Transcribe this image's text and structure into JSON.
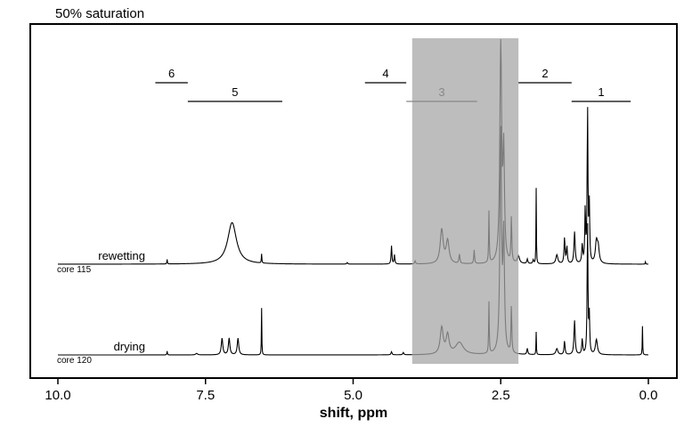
{
  "title": "50% saturation",
  "chart_data": {
    "type": "line",
    "xlabel": "shift, ppm",
    "xlim": [
      10.0,
      0.0
    ],
    "x_reversed": true,
    "xticks": [
      "10.0",
      "7.5",
      "5.0",
      "2.5",
      "0.0"
    ],
    "xtick_values": [
      10.0,
      7.5,
      5.0,
      2.5,
      0.0
    ],
    "highlight_band": {
      "x_from": 4.0,
      "x_to": 2.2,
      "color": "#bdbdbd"
    },
    "regions": [
      {
        "label": "6",
        "from": 8.35,
        "to": 7.8,
        "level": "upper",
        "color": "#000000"
      },
      {
        "label": "5",
        "from": 7.8,
        "to": 6.2,
        "level": "lower",
        "color": "#000000"
      },
      {
        "label": "4",
        "from": 4.8,
        "to": 4.1,
        "level": "upper",
        "color": "#000000"
      },
      {
        "label": "3",
        "from": 4.1,
        "to": 2.9,
        "level": "lower",
        "color": "#888888"
      },
      {
        "label": "2",
        "from": 2.2,
        "to": 1.3,
        "level": "upper",
        "color": "#000000"
      },
      {
        "label": "1",
        "from": 1.3,
        "to": 0.3,
        "level": "lower",
        "color": "#000000"
      }
    ],
    "series": [
      {
        "name": "rewetting",
        "sample": "core 115",
        "color": "#000000",
        "peaks": [
          [
            8.15,
            0.06,
            0.005
          ],
          [
            7.05,
            0.55,
            0.09
          ],
          [
            6.55,
            0.12,
            0.005
          ],
          [
            5.1,
            0.02,
            0.01
          ],
          [
            4.35,
            0.24,
            0.008
          ],
          [
            4.3,
            0.12,
            0.008
          ],
          [
            3.95,
            0.04,
            0.01
          ],
          [
            3.5,
            0.45,
            0.03
          ],
          [
            3.4,
            0.3,
            0.03
          ],
          [
            3.2,
            0.12,
            0.01
          ],
          [
            2.95,
            0.18,
            0.008
          ],
          [
            2.7,
            0.68,
            0.006
          ],
          [
            2.5,
            2.9,
            0.018
          ],
          [
            2.45,
            1.4,
            0.015
          ],
          [
            2.32,
            0.6,
            0.008
          ],
          [
            2.2,
            0.1,
            0.02
          ],
          [
            2.05,
            0.06,
            0.01
          ],
          [
            1.95,
            0.05,
            0.01
          ],
          [
            1.9,
            1.0,
            0.004
          ],
          [
            1.55,
            0.12,
            0.02
          ],
          [
            1.42,
            0.34,
            0.01
          ],
          [
            1.38,
            0.22,
            0.01
          ],
          [
            1.25,
            0.42,
            0.012
          ],
          [
            1.12,
            0.24,
            0.01
          ],
          [
            1.07,
            0.7,
            0.008
          ],
          [
            1.03,
            2.05,
            0.008
          ],
          [
            1.0,
            0.75,
            0.008
          ],
          [
            0.88,
            0.28,
            0.02
          ],
          [
            0.85,
            0.2,
            0.02
          ],
          [
            0.05,
            0.03,
            0.005
          ]
        ]
      },
      {
        "name": "drying",
        "sample": "core 120",
        "color": "#000000",
        "peaks": [
          [
            8.15,
            0.05,
            0.005
          ],
          [
            7.65,
            0.02,
            0.02
          ],
          [
            7.22,
            0.22,
            0.015
          ],
          [
            7.1,
            0.22,
            0.015
          ],
          [
            6.95,
            0.22,
            0.015
          ],
          [
            6.55,
            0.62,
            0.004
          ],
          [
            4.35,
            0.04,
            0.01
          ],
          [
            4.15,
            0.03,
            0.01
          ],
          [
            3.5,
            0.35,
            0.03
          ],
          [
            3.4,
            0.25,
            0.03
          ],
          [
            3.2,
            0.16,
            0.08
          ],
          [
            2.7,
            0.68,
            0.006
          ],
          [
            2.5,
            2.9,
            0.016
          ],
          [
            2.45,
            1.5,
            0.015
          ],
          [
            2.32,
            0.62,
            0.008
          ],
          [
            2.05,
            0.08,
            0.01
          ],
          [
            1.9,
            0.3,
            0.004
          ],
          [
            1.55,
            0.08,
            0.02
          ],
          [
            1.42,
            0.18,
            0.01
          ],
          [
            1.25,
            0.45,
            0.012
          ],
          [
            1.12,
            0.2,
            0.01
          ],
          [
            1.03,
            1.75,
            0.008
          ],
          [
            1.0,
            0.5,
            0.008
          ],
          [
            0.88,
            0.2,
            0.02
          ],
          [
            0.1,
            0.38,
            0.004
          ]
        ]
      }
    ]
  }
}
